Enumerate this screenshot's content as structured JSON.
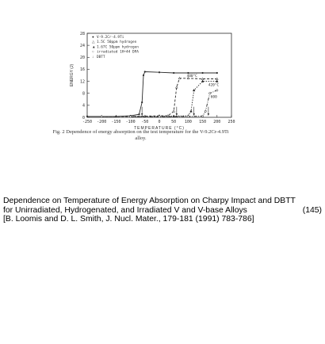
{
  "chart_data": {
    "type": "line",
    "xlabel": "TEMPERATURE (°C)",
    "ylabel": "ENERGY (J)",
    "xlim": [
      -250,
      250
    ],
    "ylim": [
      0,
      28
    ],
    "x_ticks": [
      "-250",
      "-200",
      "-150",
      "-100",
      "-50",
      "0",
      "50",
      "100",
      "150",
      "200",
      "250"
    ],
    "y_ticks": [
      "28",
      "24",
      "20",
      "16",
      "12",
      "8",
      "4",
      "0"
    ],
    "legend": [
      "V-9.2Cr-4.9Ti",
      "1.5C 50ppm hydrogen",
      "1.67C 50ppm hydrogen",
      "irradiated 1H+44 DPA",
      "DBTT"
    ],
    "series": [
      {
        "name": "V-9.2Cr-4.9Ti",
        "x": [
          -250,
          -150,
          -100,
          -70,
          -60,
          -55,
          -50,
          0,
          50,
          100,
          150,
          200
        ],
        "y": [
          0.3,
          0.3,
          0.5,
          1.0,
          5.0,
          14.0,
          15.2,
          15.0,
          14.8,
          14.8,
          14.8,
          14.8
        ]
      },
      {
        "name": "1.5C 50ppm hydrogen",
        "x": [
          -200,
          -100,
          -50,
          0,
          30,
          50,
          60,
          70,
          100,
          150,
          200
        ],
        "y": [
          0.3,
          0.3,
          0.4,
          0.5,
          0.5,
          2.0,
          10.0,
          13.0,
          13.0,
          12.8,
          12.8
        ]
      },
      {
        "name": "1.67C 50ppm hydrogen",
        "x": [
          -100,
          0,
          50,
          100,
          110,
          120,
          150,
          200
        ],
        "y": [
          0.3,
          0.3,
          0.4,
          0.5,
          2.0,
          9.0,
          12.0,
          12.0
        ]
      },
      {
        "name": "irradiated 1H+44 DPA",
        "x": [
          -100,
          0,
          100,
          150,
          160,
          175,
          200
        ],
        "y": [
          0.2,
          0.2,
          0.3,
          0.4,
          2.0,
          8.0,
          9.0
        ]
      }
    ],
    "annotations": [
      "400°C",
      "420°C",
      "600"
    ]
  },
  "figure_caption": "Fig. 2  Dependence of energy absorption on the test temperature for the V-9.2Cr-4.9Ti alloy.",
  "caption": {
    "line1": "Dependence on Temperature of Energy Absorption on Charpy Impact and DBTT",
    "line2": "for Unirradiated, Hydrogenated, and Irradiated V and V-base Alloys",
    "ref_number": "(145)",
    "line3": "[B. Loomis and D. L. Smith, J. Nucl. Mater., 179-181 (1991) 783-786]"
  }
}
